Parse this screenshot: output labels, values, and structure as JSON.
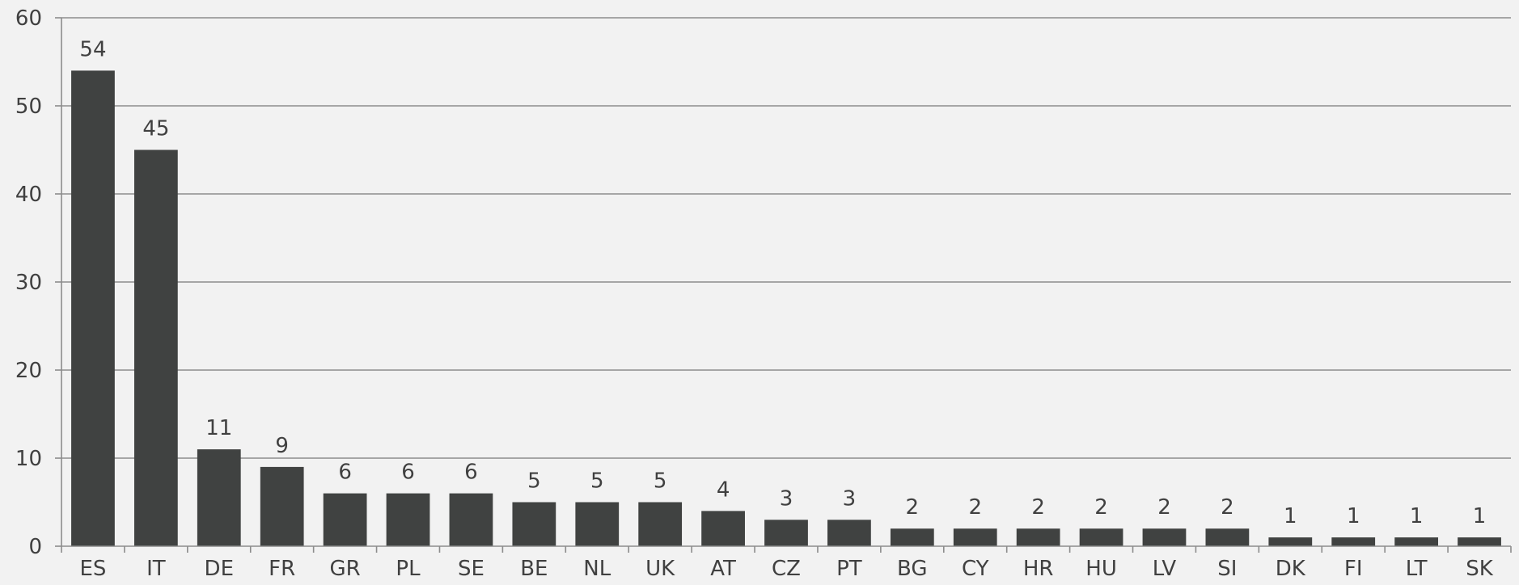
{
  "chart_data": {
    "type": "bar",
    "categories": [
      "ES",
      "IT",
      "DE",
      "FR",
      "GR",
      "PL",
      "SE",
      "BE",
      "NL",
      "UK",
      "AT",
      "CZ",
      "PT",
      "BG",
      "CY",
      "HR",
      "HU",
      "LV",
      "SI",
      "DK",
      "FI",
      "LT",
      "SK"
    ],
    "values": [
      54,
      45,
      11,
      9,
      6,
      6,
      6,
      5,
      5,
      5,
      4,
      3,
      3,
      2,
      2,
      2,
      2,
      2,
      2,
      1,
      1,
      1,
      1
    ],
    "ylim": [
      0,
      60
    ],
    "yticks": [
      0,
      10,
      20,
      30,
      40,
      50,
      60
    ],
    "grid": true,
    "data_labels": true,
    "colors": {
      "bar": "#404241",
      "grid": "#8c8c8c",
      "axis": "#8c8c8c",
      "text": "#404040",
      "background": "#f2f2f2"
    }
  }
}
